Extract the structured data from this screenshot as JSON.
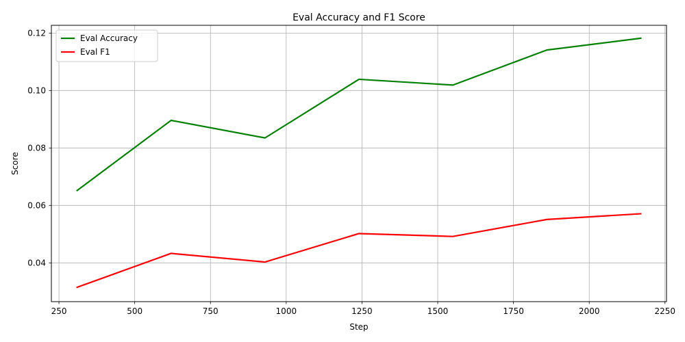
{
  "chart_data": {
    "type": "line",
    "title": "Eval Accuracy and F1 Score",
    "xlabel": "Step",
    "ylabel": "Score",
    "xlim": [
      225,
      2255
    ],
    "ylim": [
      0.0265,
      0.1227
    ],
    "x_ticks": [
      {
        "value": 250,
        "label": "250"
      },
      {
        "value": 500,
        "label": "500"
      },
      {
        "value": 750,
        "label": "750"
      },
      {
        "value": 1000,
        "label": "1000"
      },
      {
        "value": 1250,
        "label": "1250"
      },
      {
        "value": 1500,
        "label": "1500"
      },
      {
        "value": 1750,
        "label": "1750"
      },
      {
        "value": 2000,
        "label": "2000"
      },
      {
        "value": 2250,
        "label": "2250"
      }
    ],
    "y_ticks": [
      {
        "value": 0.04,
        "label": "0.04"
      },
      {
        "value": 0.06,
        "label": "0.06"
      },
      {
        "value": 0.08,
        "label": "0.08"
      },
      {
        "value": 0.1,
        "label": "0.10"
      },
      {
        "value": 0.12,
        "label": "0.12"
      }
    ],
    "grid": true,
    "legend_position": "top-left",
    "x": [
      310,
      620,
      930,
      1240,
      1550,
      1860,
      2170
    ],
    "series": [
      {
        "name": "Eval Accuracy",
        "color": "#008000",
        "values": [
          0.0652,
          0.0896,
          0.0835,
          0.1039,
          0.1019,
          0.1141,
          0.1182
        ]
      },
      {
        "name": "Eval F1",
        "color": "#ff0000",
        "values": [
          0.0315,
          0.0433,
          0.0403,
          0.0502,
          0.0492,
          0.0551,
          0.0571
        ]
      }
    ]
  }
}
